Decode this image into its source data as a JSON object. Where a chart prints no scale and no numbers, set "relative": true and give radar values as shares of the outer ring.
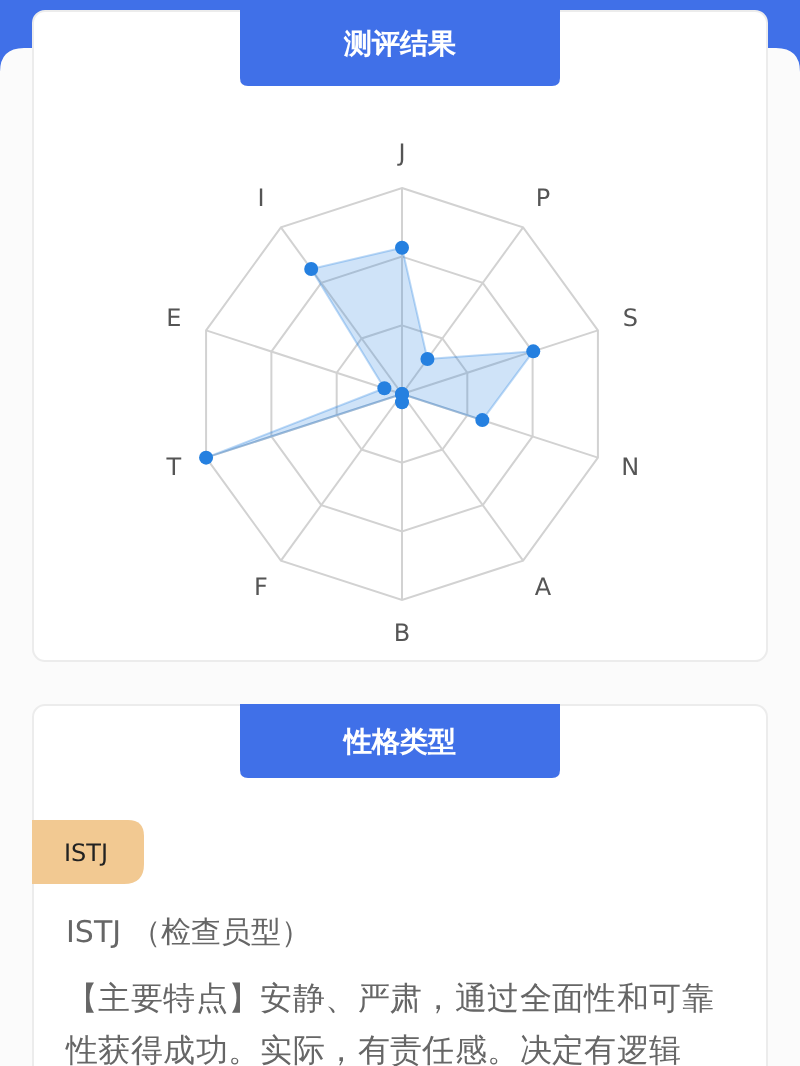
{
  "chart_data": [
    {
      "type": "radar",
      "title": "测评结果",
      "categories": [
        "J",
        "P",
        "S",
        "N",
        "A",
        "B",
        "F",
        "T",
        "E",
        "I"
      ],
      "relative": true,
      "grid": true,
      "marker": "circle",
      "series": [
        {
          "color": "#2580e0",
          "values": [
            0.71,
            0.21,
            0.67,
            0.41,
            0,
            0.04,
            0,
            1,
            0.09,
            0.75
          ]
        }
      ]
    },
    {
      "type": "other",
      "title": "性格类型",
      "annotations": [
        "ISTJ",
        "ISTJ （检查员型）",
        "【主要特点】安静、严肃，通过全面性和可靠性获得成功。实际，有责任感。决定有逻辑"
      ]
    }
  ]
}
